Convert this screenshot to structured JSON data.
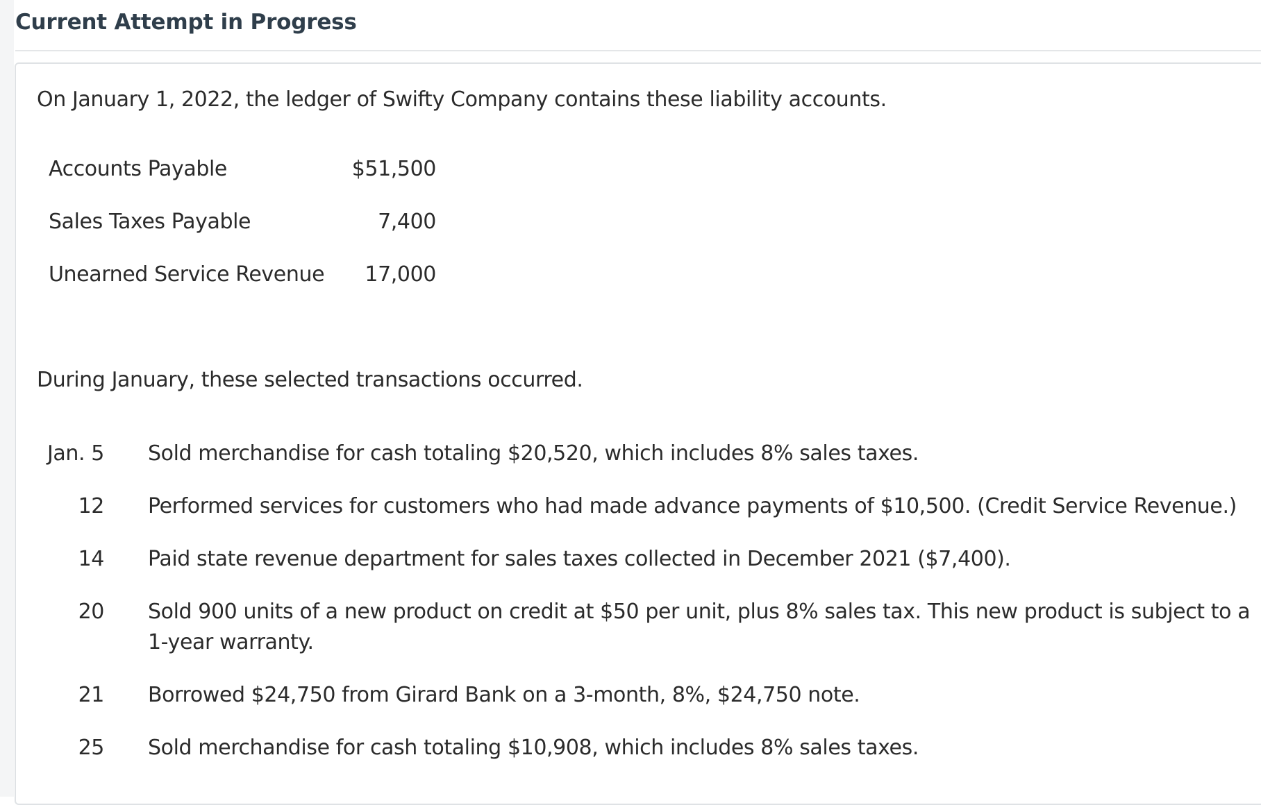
{
  "header": {
    "title": "Current Attempt in Progress"
  },
  "question": {
    "intro": "On January 1, 2022, the ledger of Swifty Company contains these liability accounts.",
    "accounts": [
      {
        "name": "Accounts Payable",
        "amount": "$51,500"
      },
      {
        "name": "Sales Taxes Payable",
        "amount": "7,400"
      },
      {
        "name": "Unearned Service Revenue",
        "amount": "17,000"
      }
    ],
    "transactions_intro": "During January, these selected transactions occurred.",
    "transactions": [
      {
        "date": "Jan. 5",
        "description": "Sold merchandise for cash totaling $20,520, which includes 8% sales taxes."
      },
      {
        "date": "12",
        "description": "Performed services for customers who had made advance payments of $10,500. (Credit Service Revenue.)"
      },
      {
        "date": "14",
        "description": "Paid state revenue department for sales taxes collected in December 2021 ($7,400)."
      },
      {
        "date": "20",
        "description": "Sold 900 units of a new product on credit at $50 per unit, plus 8% sales tax. This new product is subject to a 1-year warranty."
      },
      {
        "date": "21",
        "description": "Borrowed $24,750 from Girard Bank on a 3-month, 8%, $24,750 note."
      },
      {
        "date": "25",
        "description": "Sold merchandise for cash totaling $10,908, which includes 8% sales taxes."
      }
    ]
  }
}
